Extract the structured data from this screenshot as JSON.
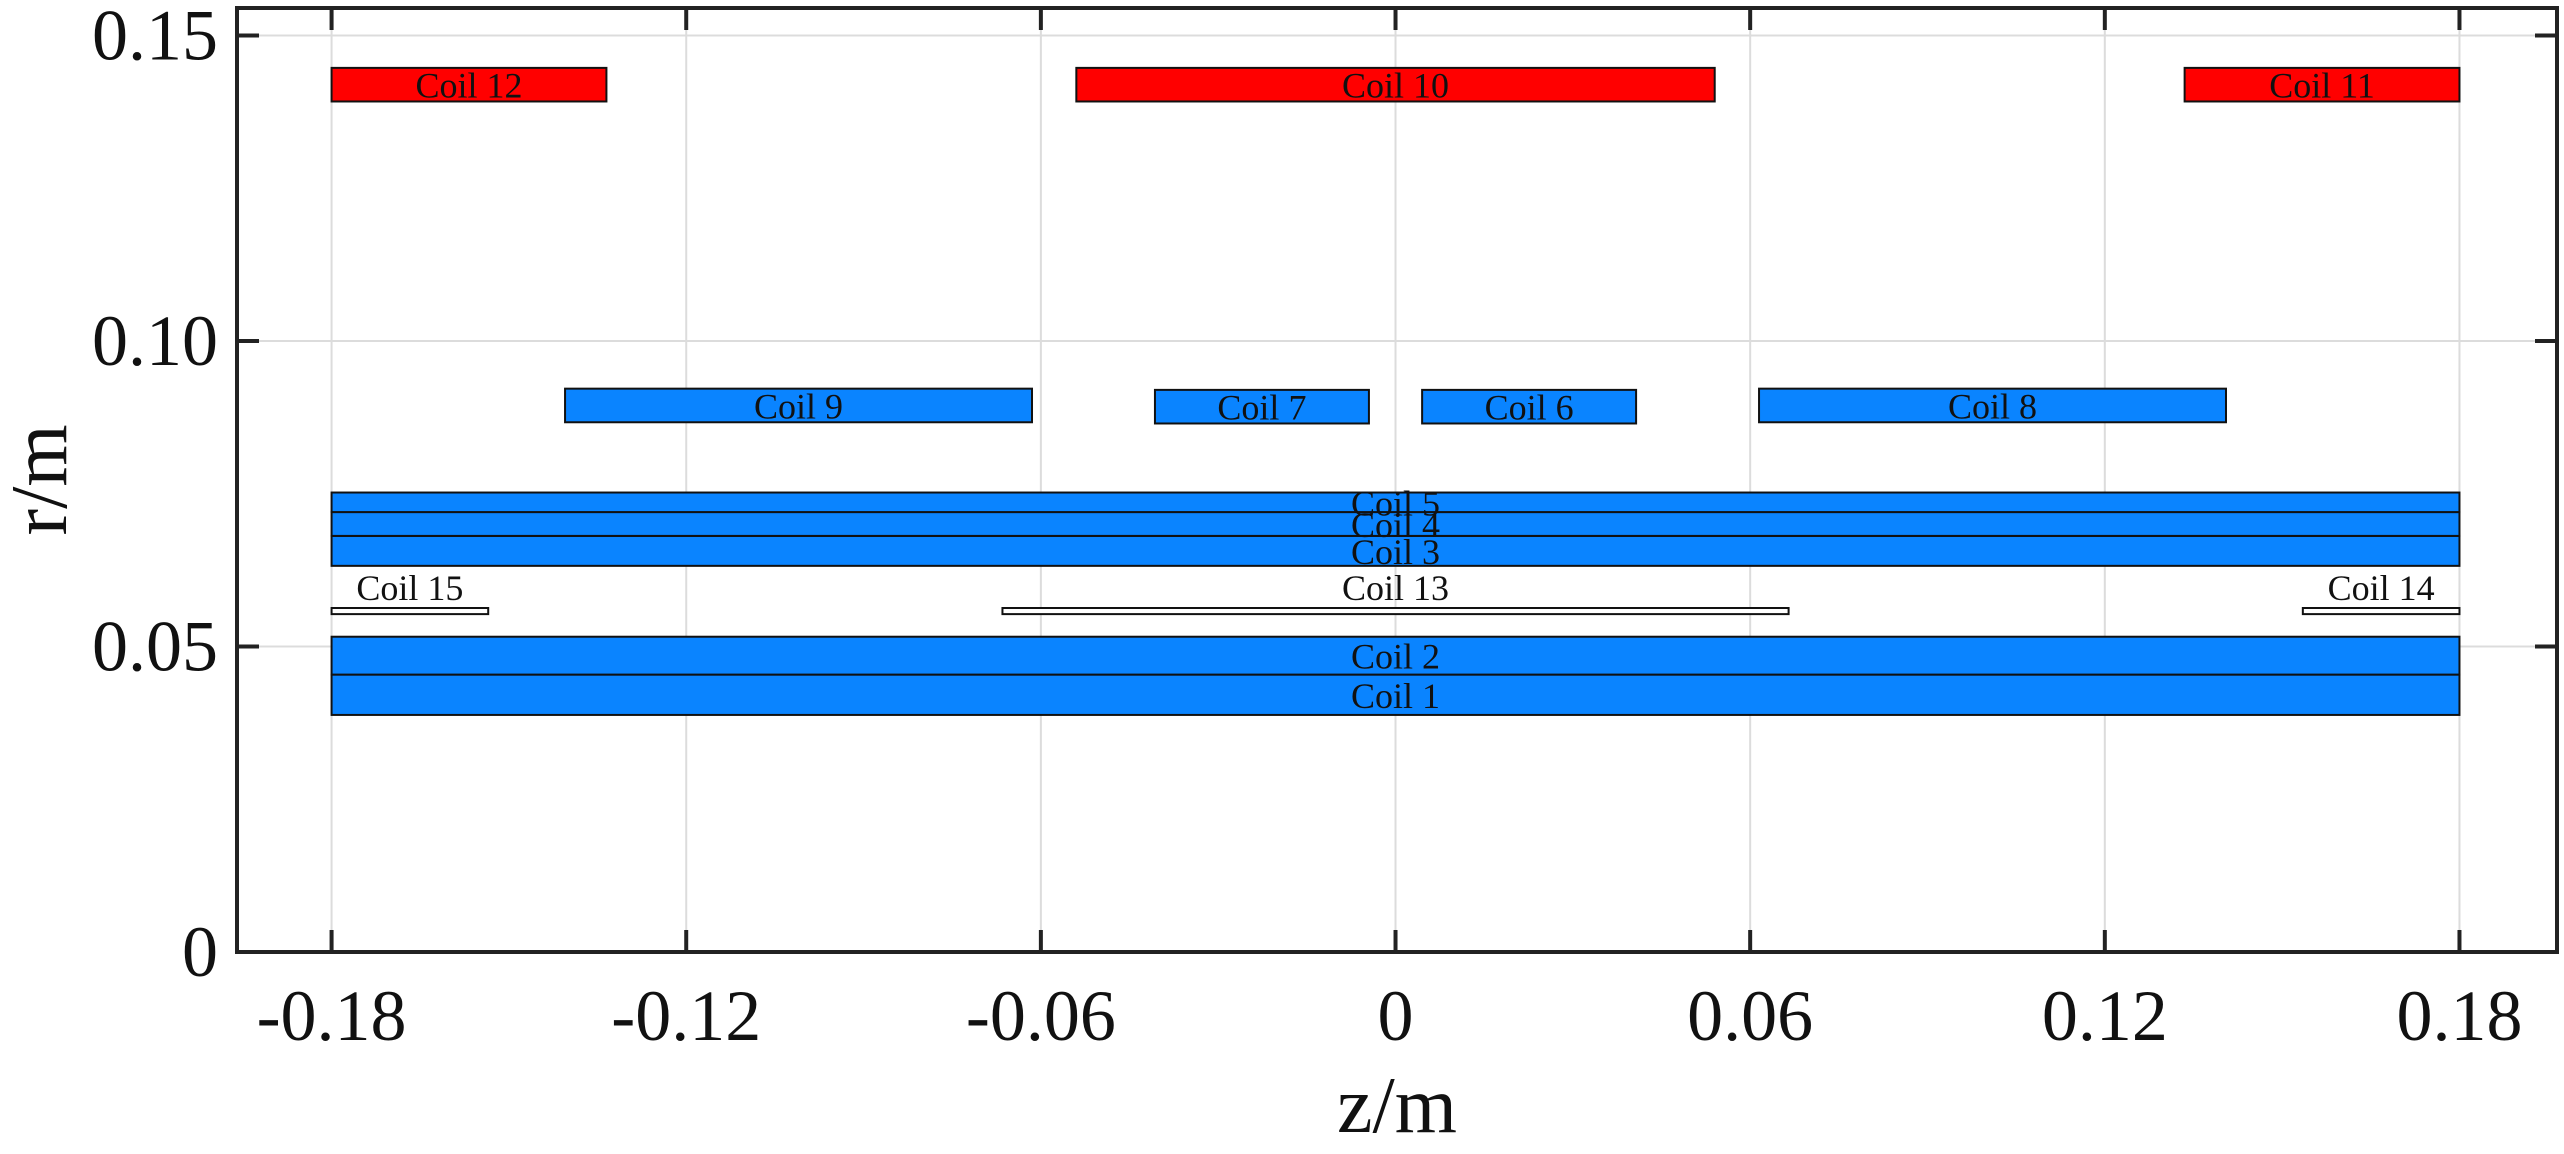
{
  "chart_data": {
    "type": "rectangles",
    "xlabel": "z/m",
    "ylabel": "r/m",
    "xlim": [
      -0.196,
      0.1965
    ],
    "ylim": [
      0,
      0.1545
    ],
    "xticks": [
      -0.18,
      -0.12,
      -0.06,
      0,
      0.06,
      0.12,
      0.18
    ],
    "xtick_labels": [
      "-0.18",
      "-0.12",
      "-0.06",
      "0",
      "0.06",
      "0.12",
      "0.18"
    ],
    "yticks": [
      0,
      0.05,
      0.1,
      0.15
    ],
    "ytick_labels": [
      "0",
      "0.05",
      "0.10",
      "0.15"
    ],
    "grid": true,
    "colors": {
      "blue": "#0a84ff",
      "red": "#ff0000",
      "white": "#ffffff"
    },
    "coils": [
      {
        "name": "Coil 1",
        "z": [
          -0.18,
          0.18
        ],
        "r": [
          0.0388,
          0.0454
        ],
        "color": "blue"
      },
      {
        "name": "Coil 2",
        "z": [
          -0.18,
          0.18
        ],
        "r": [
          0.0454,
          0.0516
        ],
        "color": "blue"
      },
      {
        "name": "Coil 3",
        "z": [
          -0.18,
          0.18
        ],
        "r": [
          0.0632,
          0.0681
        ],
        "color": "blue"
      },
      {
        "name": "Coil 4",
        "z": [
          -0.18,
          0.18
        ],
        "r": [
          0.0681,
          0.072
        ],
        "color": "blue"
      },
      {
        "name": "Coil 5",
        "z": [
          -0.18,
          0.18
        ],
        "r": [
          0.072,
          0.0752
        ],
        "color": "blue"
      },
      {
        "name": "Coil 6",
        "z": [
          0.0045,
          0.0407
        ],
        "r": [
          0.0865,
          0.092
        ],
        "color": "blue"
      },
      {
        "name": "Coil 7",
        "z": [
          -0.0407,
          -0.0045
        ],
        "r": [
          0.0865,
          0.092
        ],
        "color": "blue"
      },
      {
        "name": "Coil 8",
        "z": [
          0.0615,
          0.1405
        ],
        "r": [
          0.0867,
          0.0922
        ],
        "color": "blue"
      },
      {
        "name": "Coil 9",
        "z": [
          -0.1405,
          -0.0615
        ],
        "r": [
          0.0867,
          0.0922
        ],
        "color": "blue"
      },
      {
        "name": "Coil 10",
        "z": [
          -0.054,
          0.054
        ],
        "r": [
          0.1392,
          0.1447
        ],
        "color": "red"
      },
      {
        "name": "Coil 11",
        "z": [
          0.1335,
          0.18
        ],
        "r": [
          0.1392,
          0.1447
        ],
        "color": "red"
      },
      {
        "name": "Coil 12",
        "z": [
          -0.18,
          -0.1335
        ],
        "r": [
          0.1392,
          0.1447
        ],
        "color": "red"
      },
      {
        "name": "Coil 13",
        "z": [
          -0.0665,
          0.0665
        ],
        "r": [
          0.0553,
          0.0563
        ],
        "color": "white"
      },
      {
        "name": "Coil 14",
        "z": [
          0.1535,
          0.18
        ],
        "r": [
          0.0553,
          0.0563
        ],
        "color": "white"
      },
      {
        "name": "Coil 15",
        "z": [
          -0.18,
          -0.1535
        ],
        "r": [
          0.0553,
          0.0563
        ],
        "color": "white"
      }
    ]
  }
}
